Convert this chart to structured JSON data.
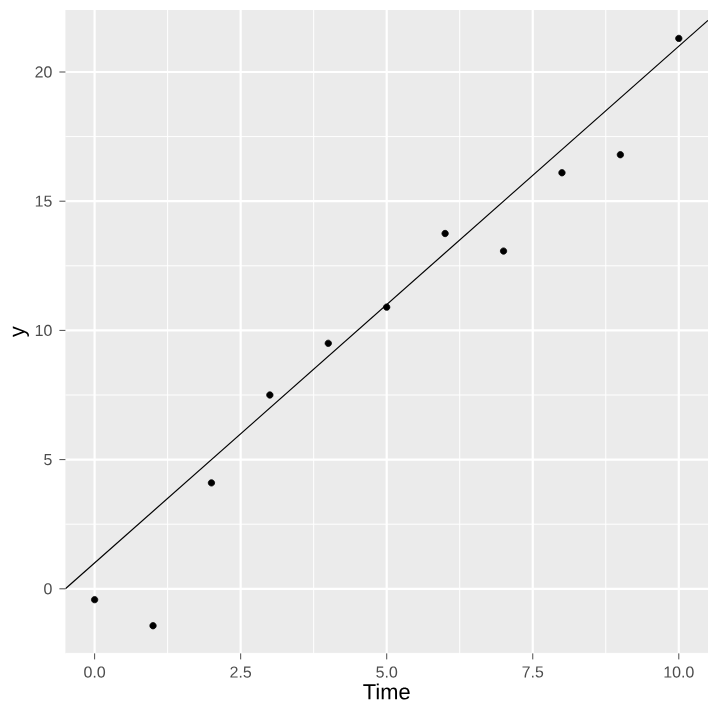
{
  "chart_data": {
    "type": "scatter",
    "xlabel": "Time",
    "ylabel": "y",
    "x": [
      0,
      1,
      2,
      3,
      4,
      5,
      6,
      7,
      8,
      9,
      10
    ],
    "series": [
      {
        "color": "#000000",
        "values": [
          -0.42,
          -1.43,
          4.1,
          7.5,
          9.5,
          10.9,
          13.75,
          13.07,
          16.1,
          16.8,
          21.3
        ],
        "marker": "circle"
      },
      {
        "type": "line",
        "color": "#000000",
        "x": [
          -0.5,
          10.5
        ],
        "values": [
          0.0,
          22.0
        ],
        "line_style": "solid",
        "marker": "none"
      }
    ],
    "xlim": [
      -0.5,
      10.5
    ],
    "ylim": [
      -2.5,
      22.4
    ],
    "xticks": [
      {
        "value": 0,
        "label": "0.0"
      },
      {
        "value": 2.5,
        "label": "2.5"
      },
      {
        "value": 5,
        "label": "5.0"
      },
      {
        "value": 7.5,
        "label": "7.5"
      },
      {
        "value": 10,
        "label": "10.0"
      }
    ],
    "yticks": [
      0,
      5,
      10,
      15,
      20
    ],
    "grid": true
  }
}
